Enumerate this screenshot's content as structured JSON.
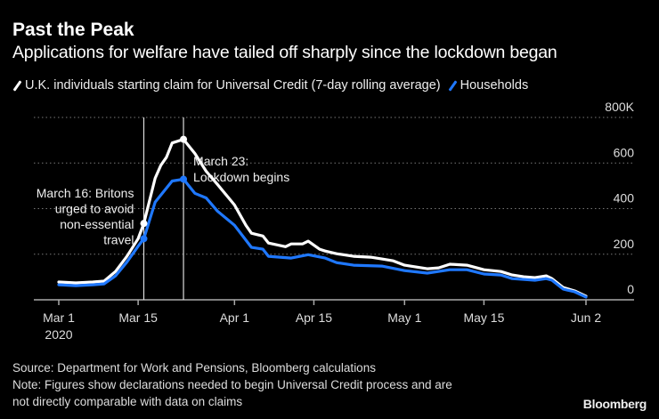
{
  "header": {
    "title": "Past the Peak",
    "subtitle": "Applications for welfare have tailed off sharply since the lockdown began"
  },
  "footer": {
    "source": "Source: Department for Work and Pensions, Bloomberg calculations",
    "note_line1": "Note: Figures show declarations needed to begin Universal Credit process and are",
    "note_line2": "not directly comparable with data on claims",
    "brand": "Bloomberg"
  },
  "chart_data": {
    "type": "line",
    "title": "Past the Peak",
    "subtitle": "Applications for welfare have tailed off sharply since the lockdown began",
    "xlabel": "",
    "ylabel": "",
    "ylim": [
      0,
      800
    ],
    "y_unit_suffix": "K",
    "yticks": [
      {
        "value": 0,
        "label": "0"
      },
      {
        "value": 200,
        "label": "200"
      },
      {
        "value": 400,
        "label": "400"
      },
      {
        "value": 600,
        "label": "600"
      },
      {
        "value": 800,
        "label": "800K"
      }
    ],
    "xlim": [
      "2020-03-01",
      "2020-06-02"
    ],
    "xticks": [
      {
        "date": "2020-03-01",
        "label": "Mar 1",
        "sublabel": "2020"
      },
      {
        "date": "2020-03-15",
        "label": "Mar 15"
      },
      {
        "date": "2020-04-01",
        "label": "Apr 1"
      },
      {
        "date": "2020-04-15",
        "label": "Apr 15"
      },
      {
        "date": "2020-05-01",
        "label": "May 1"
      },
      {
        "date": "2020-05-15",
        "label": "May 15"
      },
      {
        "date": "2020-06-02",
        "label": "Jun 2"
      }
    ],
    "grid": "horizontal dotted",
    "legend_position": "top",
    "series": [
      {
        "name": "U.K. individuals starting claim for Universal Credit (7-day rolling average)",
        "color": "#ffffff",
        "x": [
          "2020-03-01",
          "2020-03-04",
          "2020-03-07",
          "2020-03-09",
          "2020-03-11",
          "2020-03-13",
          "2020-03-15",
          "2020-03-16",
          "2020-03-18",
          "2020-03-19",
          "2020-03-20",
          "2020-03-21",
          "2020-03-23",
          "2020-03-25",
          "2020-03-27",
          "2020-03-29",
          "2020-04-01",
          "2020-04-03",
          "2020-04-04",
          "2020-04-06",
          "2020-04-07",
          "2020-04-10",
          "2020-04-11",
          "2020-04-13",
          "2020-04-14",
          "2020-04-16",
          "2020-04-17",
          "2020-04-19",
          "2020-04-22",
          "2020-04-25",
          "2020-04-27",
          "2020-04-29",
          "2020-05-01",
          "2020-05-03",
          "2020-05-05",
          "2020-05-07",
          "2020-05-09",
          "2020-05-12",
          "2020-05-15",
          "2020-05-18",
          "2020-05-20",
          "2020-05-22",
          "2020-05-24",
          "2020-05-26",
          "2020-05-27",
          "2020-05-29",
          "2020-05-31",
          "2020-06-02"
        ],
        "y": [
          78,
          74,
          78,
          82,
          124,
          190,
          268,
          335,
          533,
          590,
          625,
          688,
          704,
          642,
          564,
          506,
          416,
          327,
          292,
          280,
          249,
          233,
          245,
          245,
          257,
          222,
          214,
          202,
          191,
          187,
          179,
          171,
          152,
          144,
          136,
          140,
          156,
          152,
          132,
          124,
          109,
          101,
          97,
          105,
          93,
          54,
          39,
          16
        ]
      },
      {
        "name": "Households",
        "color": "#1f78ff",
        "x": [
          "2020-03-01",
          "2020-03-04",
          "2020-03-07",
          "2020-03-09",
          "2020-03-11",
          "2020-03-13",
          "2020-03-15",
          "2020-03-16",
          "2020-03-18",
          "2020-03-21",
          "2020-03-23",
          "2020-03-25",
          "2020-03-27",
          "2020-03-29",
          "2020-04-01",
          "2020-04-04",
          "2020-04-06",
          "2020-04-07",
          "2020-04-11",
          "2020-04-14",
          "2020-04-17",
          "2020-04-19",
          "2020-04-22",
          "2020-04-27",
          "2020-05-01",
          "2020-05-05",
          "2020-05-09",
          "2020-05-12",
          "2020-05-15",
          "2020-05-18",
          "2020-05-20",
          "2020-05-24",
          "2020-05-26",
          "2020-05-27",
          "2020-05-29",
          "2020-05-31",
          "2020-06-02"
        ],
        "y": [
          66,
          62,
          66,
          70,
          105,
          165,
          235,
          268,
          428,
          521,
          529,
          467,
          447,
          389,
          327,
          230,
          222,
          191,
          183,
          198,
          183,
          163,
          152,
          148,
          128,
          117,
          132,
          132,
          113,
          109,
          93,
          86,
          93,
          86,
          47,
          35,
          12
        ]
      }
    ],
    "markers": [
      {
        "series": 0,
        "date": "2020-03-16"
      },
      {
        "series": 1,
        "date": "2020-03-16"
      },
      {
        "series": 0,
        "date": "2020-03-23"
      },
      {
        "series": 1,
        "date": "2020-03-23"
      }
    ],
    "annotations": [
      {
        "date": "2020-03-16",
        "lines": [
          "March 16: Britons",
          "urged to avoid",
          "non-essential",
          "travel"
        ]
      },
      {
        "date": "2020-03-23",
        "lines": [
          "March 23:",
          "Lockdown begins"
        ]
      }
    ]
  }
}
